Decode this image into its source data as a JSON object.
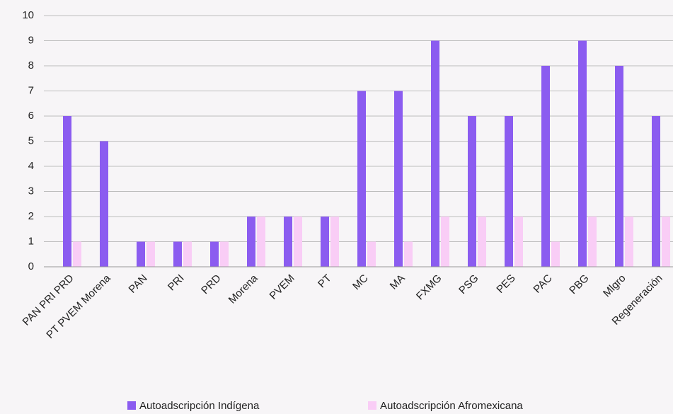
{
  "chart_data": {
    "type": "bar",
    "categories": [
      "PAN PRI PRD",
      "PT PVEM Morena",
      "PAN",
      "PRI",
      "PRD",
      "Morena",
      "PVEM",
      "PT",
      "MC",
      "MA",
      "FXMG",
      "PSG",
      "PES",
      "PAC",
      "PBG",
      "Mlgro",
      "Regeneración"
    ],
    "series": [
      {
        "name": "Autoadscripción Indígena",
        "color": "#8b5cf0",
        "values": [
          6,
          5,
          1,
          1,
          1,
          2,
          2,
          2,
          7,
          7,
          9,
          6,
          6,
          8,
          9,
          8,
          6
        ]
      },
      {
        "name": "Autoadscripción Afromexicana",
        "color": "#f9cdf6",
        "values": [
          1,
          0,
          1,
          1,
          1,
          2,
          2,
          2,
          1,
          1,
          2,
          2,
          2,
          1,
          2,
          2,
          2
        ]
      }
    ],
    "ylim": [
      0,
      10
    ],
    "yticks": [
      0,
      1,
      2,
      3,
      4,
      5,
      6,
      7,
      8,
      9,
      10
    ],
    "grid": true,
    "legend": "bottom"
  }
}
